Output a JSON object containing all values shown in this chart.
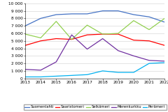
{
  "years": [
    2013,
    2014,
    2015,
    2016,
    2017,
    2018,
    2019,
    2020,
    2021,
    2022
  ],
  "series": {
    "Suomenlahti": [
      7000,
      8000,
      8500,
      8600,
      8600,
      9000,
      9000,
      8500,
      8200,
      7500
    ],
    "Saaristomeri": [
      4400,
      5000,
      5300,
      5200,
      5800,
      5900,
      5900,
      5100,
      5000,
      4400
    ],
    "Selkämeri": [
      5900,
      5400,
      7600,
      5200,
      7100,
      5900,
      6000,
      7700,
      6500,
      8000
    ],
    "Merenkurkku": [
      1200,
      1100,
      2200,
      5800,
      3900,
      5300,
      3700,
      3000,
      2400,
      2300
    ],
    "Perämeri": [
      200,
      200,
      300,
      400,
      500,
      1000,
      800,
      800,
      2000,
      2100
    ]
  },
  "colors": {
    "Suomenlahti": "#4472C4",
    "Saaristomeri": "#FF0000",
    "Selkämeri": "#92D050",
    "Merenkurkku": "#7030A0",
    "Perämeri": "#00B0F0"
  },
  "ylim": [
    0,
    10000
  ],
  "yticks": [
    0,
    1000,
    2000,
    3000,
    4000,
    5000,
    6000,
    7000,
    8000,
    9000,
    10000
  ],
  "ytick_labels": [
    "0",
    "1 000",
    "2 000",
    "3 000",
    "4 000",
    "5 000",
    "6 000",
    "7 000",
    "8 000",
    "9 000",
    "10 000"
  ],
  "legend_order": [
    "Suomenlahti",
    "Saaristomeri",
    "Selkämeri",
    "Merenkurkku",
    "Perämeri"
  ],
  "background_color": "#ffffff",
  "grid_color": "#d0d0d0",
  "linewidth": 0.9,
  "tick_fontsize": 4.2,
  "legend_fontsize": 3.8
}
